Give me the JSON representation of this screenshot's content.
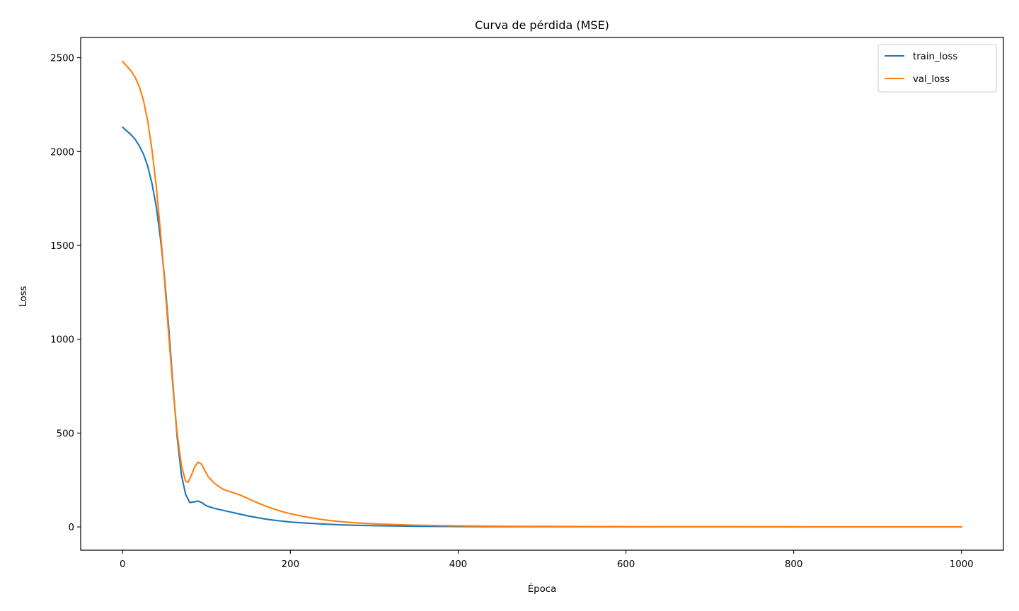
{
  "chart_data": {
    "type": "line",
    "title": "Curva de pérdida (MSE)",
    "xlabel": "Época",
    "ylabel": "Loss",
    "xlim": [
      -50,
      1050
    ],
    "ylim": [
      -124,
      2608
    ],
    "xticks": [
      0,
      200,
      400,
      600,
      800,
      1000
    ],
    "yticks": [
      0,
      500,
      1000,
      1500,
      2000,
      2500
    ],
    "grid": false,
    "legend_position": "top-right",
    "series": [
      {
        "name": "train_loss",
        "color": "#1f77b4",
        "points": [
          [
            0,
            2130
          ],
          [
            5,
            2110
          ],
          [
            10,
            2090
          ],
          [
            15,
            2065
          ],
          [
            20,
            2030
          ],
          [
            25,
            1985
          ],
          [
            30,
            1920
          ],
          [
            35,
            1830
          ],
          [
            40,
            1710
          ],
          [
            45,
            1540
          ],
          [
            50,
            1330
          ],
          [
            55,
            1060
          ],
          [
            60,
            760
          ],
          [
            65,
            480
          ],
          [
            70,
            280
          ],
          [
            75,
            175
          ],
          [
            80,
            130
          ],
          [
            85,
            133
          ],
          [
            90,
            138
          ],
          [
            95,
            128
          ],
          [
            100,
            112
          ],
          [
            110,
            98
          ],
          [
            120,
            88
          ],
          [
            130,
            78
          ],
          [
            140,
            68
          ],
          [
            150,
            58
          ],
          [
            160,
            50
          ],
          [
            170,
            42
          ],
          [
            180,
            36
          ],
          [
            190,
            31
          ],
          [
            200,
            26
          ],
          [
            220,
            20
          ],
          [
            240,
            15
          ],
          [
            260,
            11
          ],
          [
            280,
            8.5
          ],
          [
            300,
            6.5
          ],
          [
            350,
            3.5
          ],
          [
            400,
            2
          ],
          [
            450,
            1.2
          ],
          [
            500,
            0.8
          ],
          [
            600,
            0.4
          ],
          [
            700,
            0.3
          ],
          [
            800,
            0.25
          ],
          [
            900,
            0.2
          ],
          [
            1000,
            0.2
          ]
        ]
      },
      {
        "name": "val_loss",
        "color": "#ff7f0e",
        "points": [
          [
            0,
            2480
          ],
          [
            5,
            2455
          ],
          [
            10,
            2430
          ],
          [
            15,
            2395
          ],
          [
            20,
            2345
          ],
          [
            25,
            2270
          ],
          [
            30,
            2160
          ],
          [
            35,
            2010
          ],
          [
            40,
            1820
          ],
          [
            45,
            1580
          ],
          [
            50,
            1310
          ],
          [
            55,
            1020
          ],
          [
            60,
            740
          ],
          [
            65,
            500
          ],
          [
            70,
            330
          ],
          [
            75,
            245
          ],
          [
            78,
            238
          ],
          [
            82,
            275
          ],
          [
            86,
            320
          ],
          [
            90,
            345
          ],
          [
            94,
            335
          ],
          [
            98,
            300
          ],
          [
            102,
            268
          ],
          [
            110,
            230
          ],
          [
            120,
            200
          ],
          [
            130,
            185
          ],
          [
            140,
            170
          ],
          [
            150,
            150
          ],
          [
            160,
            130
          ],
          [
            170,
            112
          ],
          [
            180,
            96
          ],
          [
            190,
            82
          ],
          [
            200,
            70
          ],
          [
            220,
            52
          ],
          [
            240,
            38
          ],
          [
            260,
            28
          ],
          [
            280,
            21
          ],
          [
            300,
            16
          ],
          [
            350,
            9
          ],
          [
            400,
            5.5
          ],
          [
            450,
            3.5
          ],
          [
            500,
            2.5
          ],
          [
            600,
            1.5
          ],
          [
            700,
            1
          ],
          [
            800,
            0.8
          ],
          [
            900,
            0.6
          ],
          [
            1000,
            0.5
          ]
        ]
      }
    ]
  }
}
